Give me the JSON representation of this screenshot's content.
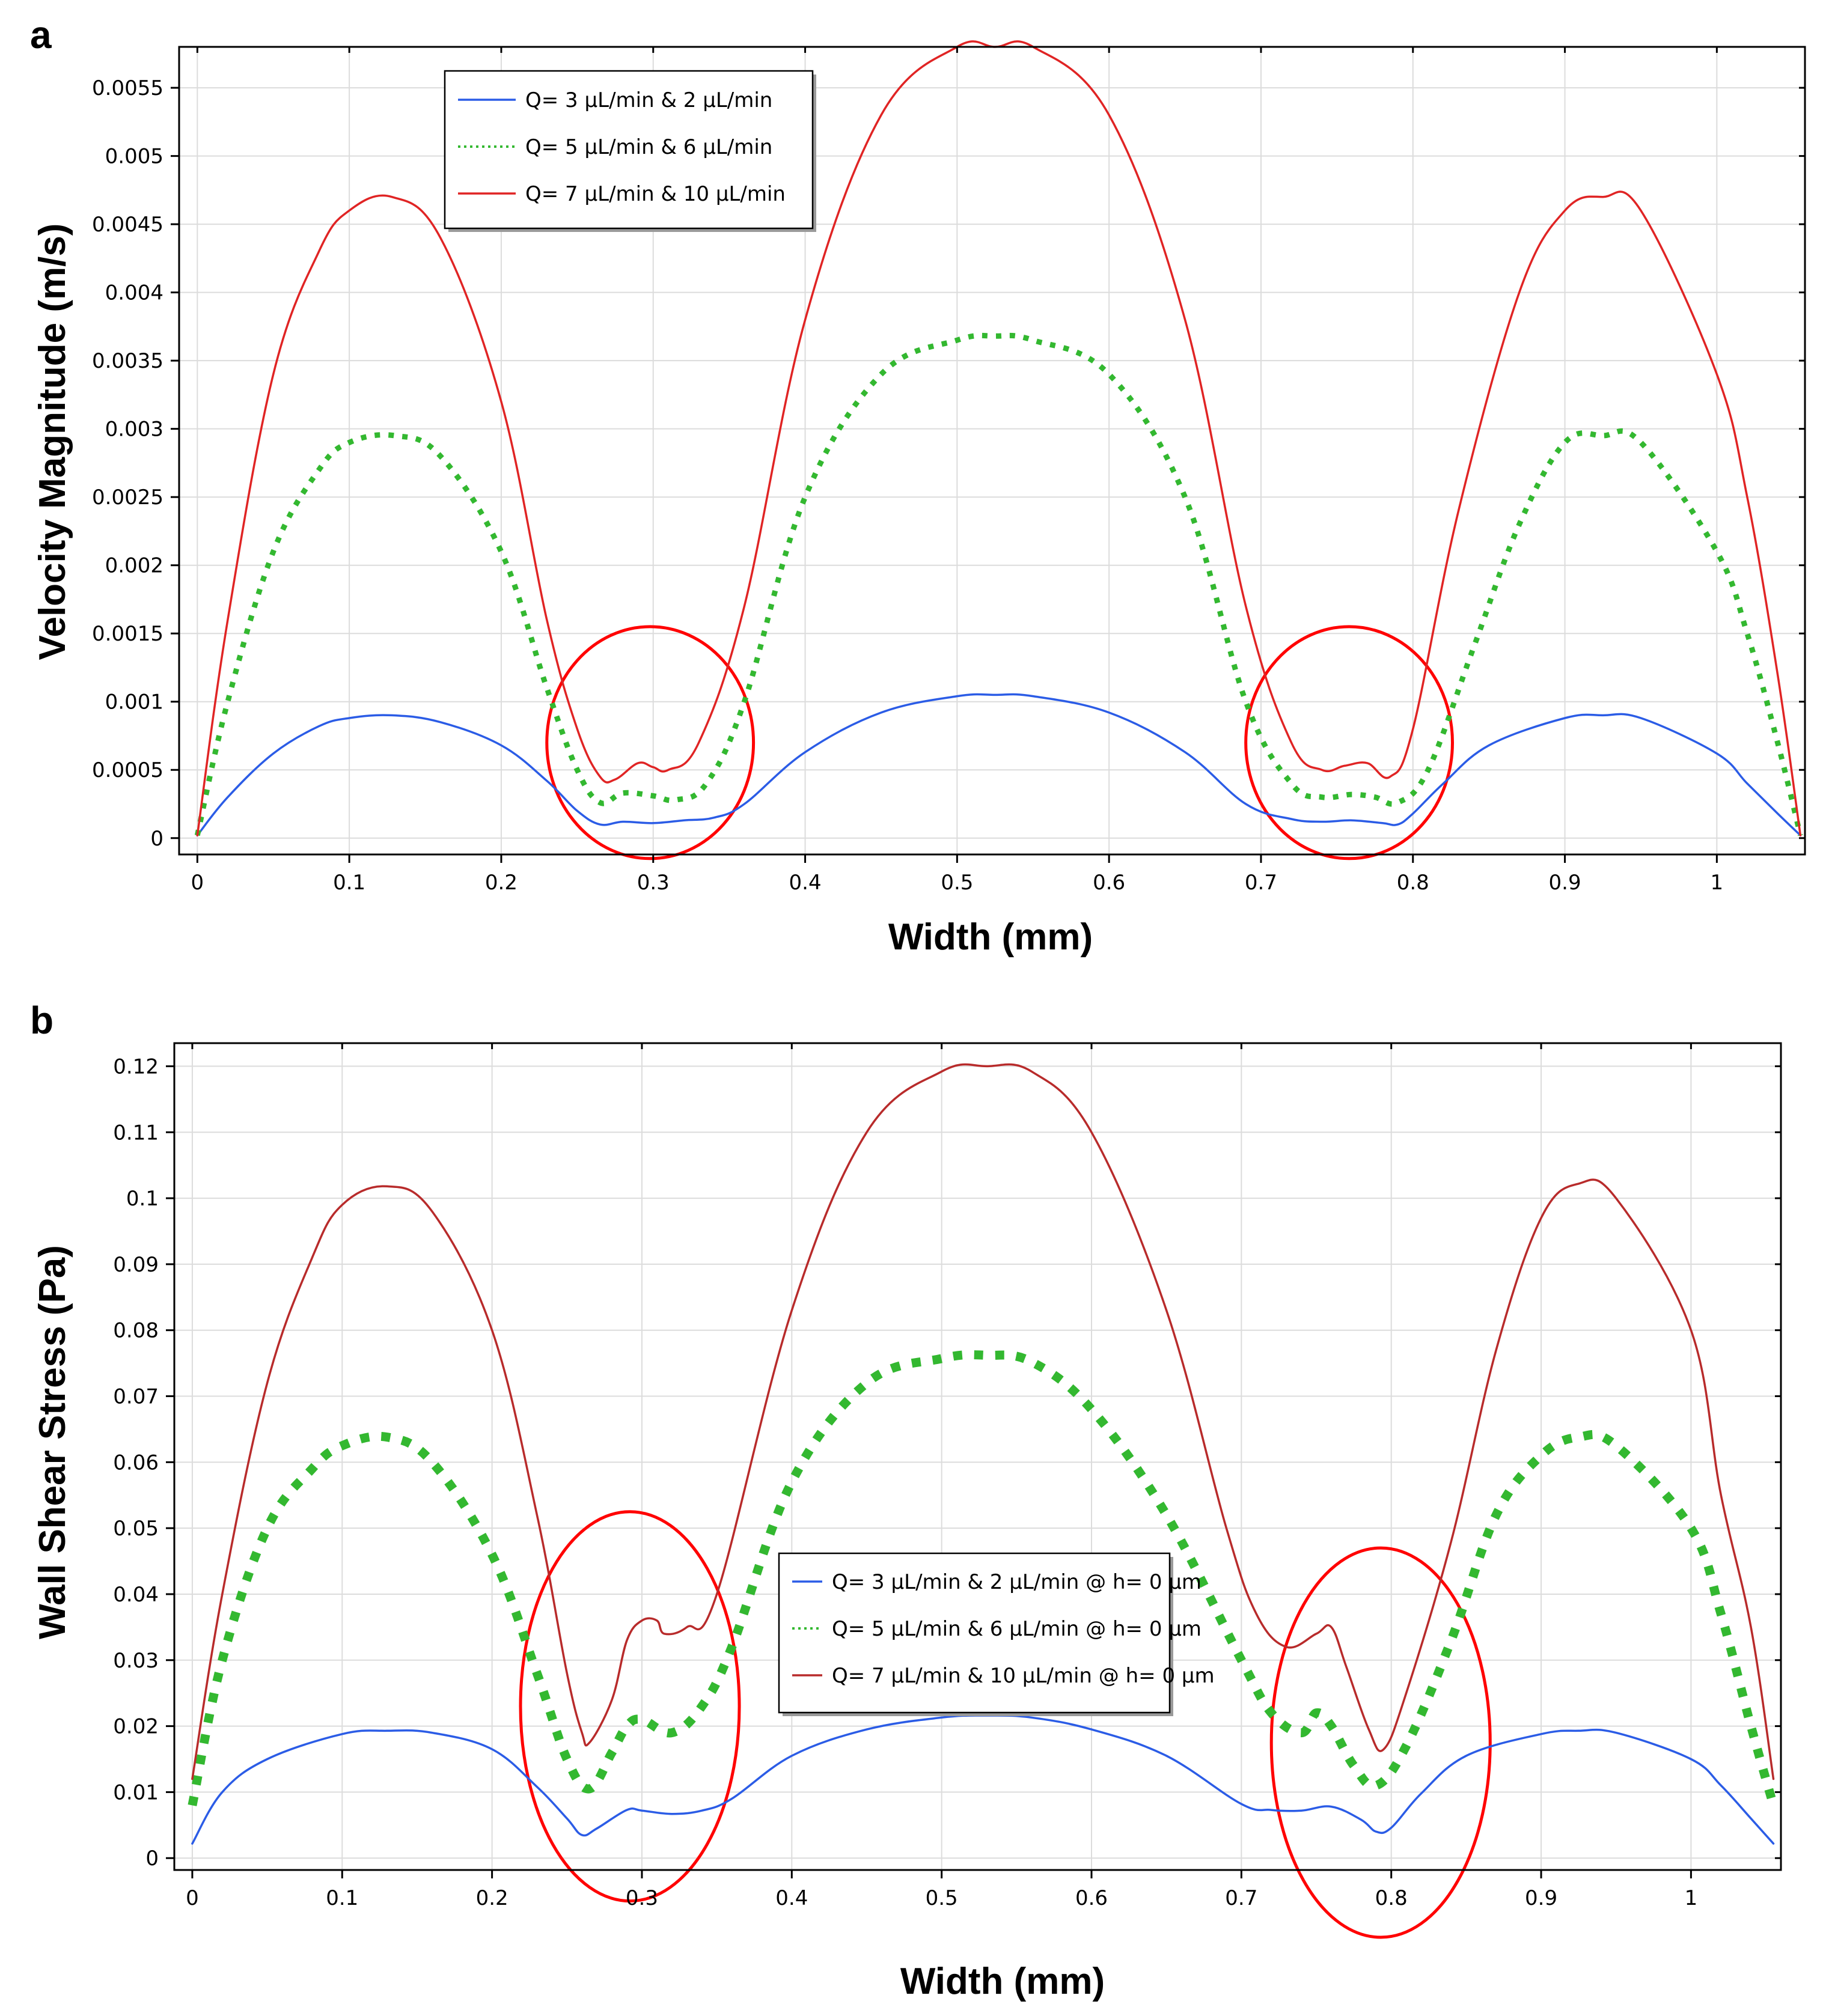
{
  "chart_data": [
    {
      "panel_label": "a",
      "type": "line",
      "title": "",
      "xlabel": "Width (mm)",
      "ylabel": "Velocity Magnitude (m/s)",
      "xlim": [
        -0.012,
        1.058
      ],
      "ylim": [
        -0.00012,
        0.0058
      ],
      "grid": true,
      "legend_position": "top-left",
      "x_ticks": [
        0,
        0.1,
        0.2,
        0.3,
        0.4,
        0.5,
        0.6,
        0.7,
        0.8,
        0.9,
        1
      ],
      "x_tick_labels": [
        "0",
        "0.1",
        "0.2",
        "0.3",
        "0.4",
        "0.5",
        "0.6",
        "0.7",
        "0.8",
        "0.9",
        "1"
      ],
      "y_ticks": [
        0,
        0.0005,
        0.001,
        0.0015,
        0.002,
        0.0025,
        0.003,
        0.0035,
        0.004,
        0.0045,
        0.005,
        0.0055
      ],
      "y_tick_labels": [
        "0",
        "0.0005",
        "0.001",
        "0.0015",
        "0.002",
        "0.0025",
        "0.003",
        "0.0035",
        "0.004",
        "0.0045",
        "0.005",
        "0.0055"
      ],
      "series": [
        {
          "name": "Q= 3 µL/min & 2 µL/min",
          "color": "#2b5ce6",
          "style": "solid",
          "x": [
            0,
            0.02,
            0.05,
            0.08,
            0.1,
            0.128,
            0.16,
            0.2,
            0.23,
            0.25,
            0.265,
            0.28,
            0.3,
            0.32,
            0.34,
            0.36,
            0.4,
            0.45,
            0.5,
            0.525,
            0.55,
            0.6,
            0.65,
            0.69,
            0.72,
            0.74,
            0.76,
            0.78,
            0.79,
            0.8,
            0.82,
            0.85,
            0.9,
            0.925,
            0.95,
            1,
            1.02,
            1.04,
            1.055
          ],
          "y": [
            2e-05,
            0.0003,
            0.00062,
            0.00082,
            0.00088,
            0.0009,
            0.00085,
            0.00068,
            0.00042,
            0.0002,
            0.0001,
            0.00012,
            0.00011,
            0.00013,
            0.00015,
            0.00025,
            0.00063,
            0.00092,
            0.00104,
            0.00105,
            0.00104,
            0.00092,
            0.00063,
            0.00025,
            0.00014,
            0.00012,
            0.00013,
            0.00011,
            0.0001,
            0.00018,
            0.0004,
            0.00068,
            0.00088,
            0.0009,
            0.00088,
            0.00062,
            0.0004,
            0.00018,
            2e-05
          ]
        },
        {
          "name": "Q= 5 µL/min & 6 µL/min",
          "color": "#33b830",
          "style": "dotted",
          "x": [
            0,
            0.02,
            0.05,
            0.08,
            0.1,
            0.13,
            0.16,
            0.2,
            0.23,
            0.25,
            0.265,
            0.28,
            0.3,
            0.315,
            0.335,
            0.36,
            0.4,
            0.45,
            0.5,
            0.525,
            0.55,
            0.6,
            0.65,
            0.69,
            0.72,
            0.74,
            0.76,
            0.775,
            0.79,
            0.81,
            0.84,
            0.87,
            0.9,
            0.925,
            0.95,
            1,
            1.02,
            1.04,
            1.055
          ],
          "y": [
            2e-05,
            0.001,
            0.0021,
            0.0027,
            0.0029,
            0.00295,
            0.0028,
            0.0021,
            0.0011,
            0.0005,
            0.00026,
            0.00033,
            0.00031,
            0.00028,
            0.0004,
            0.001,
            0.0025,
            0.0034,
            0.00365,
            0.00368,
            0.00365,
            0.0034,
            0.0025,
            0.001,
            0.0004,
            0.0003,
            0.00032,
            0.0003,
            0.00026,
            0.0005,
            0.0014,
            0.0023,
            0.0029,
            0.00295,
            0.0029,
            0.0021,
            0.0015,
            0.0007,
            2e-05
          ]
        },
        {
          "name": "Q= 7 µL/min & 10 µL/min",
          "color": "#e02424",
          "style": "solid",
          "x": [
            0,
            0.02,
            0.05,
            0.08,
            0.1,
            0.128,
            0.16,
            0.2,
            0.23,
            0.25,
            0.265,
            0.275,
            0.29,
            0.3,
            0.31,
            0.33,
            0.36,
            0.4,
            0.45,
            0.5,
            0.525,
            0.55,
            0.6,
            0.65,
            0.69,
            0.72,
            0.74,
            0.755,
            0.77,
            0.785,
            0.8,
            0.83,
            0.87,
            0.9,
            0.925,
            0.95,
            1,
            1.02,
            1.04,
            1.055
          ],
          "y": [
            2e-05,
            0.0016,
            0.0034,
            0.0043,
            0.0046,
            0.0047,
            0.0044,
            0.0032,
            0.0016,
            0.0008,
            0.00045,
            0.00043,
            0.00055,
            0.00052,
            0.0005,
            0.0007,
            0.0017,
            0.0038,
            0.0053,
            0.0058,
            0.0058,
            0.0058,
            0.0053,
            0.0038,
            0.0017,
            0.0007,
            0.0005,
            0.00053,
            0.00055,
            0.00045,
            0.0008,
            0.0024,
            0.004,
            0.0046,
            0.0047,
            0.0046,
            0.0034,
            0.0025,
            0.0012,
            2e-05
          ]
        }
      ],
      "annotations": [
        {
          "type": "circle",
          "color": "#ff0000",
          "cx": 0.298,
          "cy": 0.0007,
          "rx": 0.068,
          "ry": 0.00085
        },
        {
          "type": "circle",
          "color": "#ff0000",
          "cx": 0.758,
          "cy": 0.0007,
          "rx": 0.068,
          "ry": 0.00085
        }
      ]
    },
    {
      "panel_label": "b",
      "type": "line",
      "title": "",
      "xlabel": "Width (mm)",
      "ylabel": "Wall Shear Stress (Pa)",
      "xlim": [
        -0.012,
        1.06
      ],
      "ylim": [
        -0.0018,
        0.1235
      ],
      "grid": true,
      "legend_position": "center-right",
      "x_ticks": [
        0,
        0.1,
        0.2,
        0.3,
        0.4,
        0.5,
        0.6,
        0.7,
        0.8,
        0.9,
        1
      ],
      "x_tick_labels": [
        "0",
        "0.1",
        "0.2",
        "0.3",
        "0.4",
        "0.5",
        "0.6",
        "0.7",
        "0.8",
        "0.9",
        "1"
      ],
      "y_ticks": [
        0,
        0.01,
        0.02,
        0.03,
        0.04,
        0.05,
        0.06,
        0.07,
        0.08,
        0.09,
        0.1,
        0.11,
        0.12
      ],
      "y_tick_labels": [
        "0",
        "0.01",
        "0.02",
        "0.03",
        "0.04",
        "0.05",
        "0.06",
        "0.07",
        "0.08",
        "0.09",
        "0.1",
        "0.11",
        "0.12"
      ],
      "series": [
        {
          "name": "Q= 3 µL/min & 2 µL/min @ h= 0 µm",
          "color": "#2b5ce6",
          "style": "solid",
          "x": [
            0,
            0.02,
            0.05,
            0.1,
            0.13,
            0.16,
            0.2,
            0.23,
            0.25,
            0.26,
            0.27,
            0.29,
            0.3,
            0.32,
            0.34,
            0.36,
            0.4,
            0.45,
            0.5,
            0.53,
            0.56,
            0.6,
            0.65,
            0.7,
            0.72,
            0.74,
            0.76,
            0.78,
            0.79,
            0.8,
            0.82,
            0.85,
            0.9,
            0.925,
            0.95,
            1,
            1.02,
            1.04,
            1.055
          ],
          "y": [
            0.0022,
            0.01,
            0.015,
            0.0188,
            0.0193,
            0.019,
            0.0165,
            0.0108,
            0.006,
            0.0035,
            0.0045,
            0.0073,
            0.0072,
            0.0067,
            0.0072,
            0.009,
            0.0155,
            0.0195,
            0.0213,
            0.0216,
            0.0213,
            0.0195,
            0.0155,
            0.0082,
            0.0073,
            0.0072,
            0.0078,
            0.0058,
            0.004,
            0.0046,
            0.0098,
            0.0155,
            0.0188,
            0.0193,
            0.019,
            0.015,
            0.011,
            0.006,
            0.0022
          ]
        },
        {
          "name": "Q= 5 µL/min & 6 µL/min @ h= 0 µm",
          "color": "#33b830",
          "style": "dotted",
          "x": [
            0,
            0.02,
            0.05,
            0.08,
            0.1,
            0.13,
            0.16,
            0.2,
            0.23,
            0.25,
            0.265,
            0.28,
            0.29,
            0.3,
            0.32,
            0.34,
            0.36,
            0.4,
            0.45,
            0.5,
            0.53,
            0.56,
            0.6,
            0.65,
            0.7,
            0.72,
            0.74,
            0.75,
            0.76,
            0.775,
            0.79,
            0.81,
            0.84,
            0.87,
            0.9,
            0.925,
            0.95,
            1,
            1.02,
            1.04,
            1.055
          ],
          "y": [
            0.008,
            0.03,
            0.05,
            0.059,
            0.0625,
            0.0638,
            0.06,
            0.046,
            0.028,
            0.015,
            0.0105,
            0.016,
            0.02,
            0.021,
            0.019,
            0.023,
            0.032,
            0.057,
            0.072,
            0.0757,
            0.0762,
            0.0752,
            0.068,
            0.052,
            0.03,
            0.022,
            0.019,
            0.022,
            0.02,
            0.014,
            0.011,
            0.017,
            0.033,
            0.052,
            0.061,
            0.0638,
            0.0625,
            0.05,
            0.037,
            0.02,
            0.008
          ]
        },
        {
          "name": "Q= 7 µL/min & 10 µL/min @ h= 0 µm",
          "color": "#b82b2b",
          "style": "solid",
          "x": [
            0,
            0.02,
            0.05,
            0.08,
            0.1,
            0.13,
            0.16,
            0.2,
            0.23,
            0.25,
            0.26,
            0.265,
            0.28,
            0.29,
            0.3,
            0.31,
            0.315,
            0.33,
            0.35,
            0.4,
            0.45,
            0.5,
            0.53,
            0.56,
            0.6,
            0.65,
            0.69,
            0.71,
            0.73,
            0.75,
            0.76,
            0.77,
            0.785,
            0.795,
            0.81,
            0.84,
            0.87,
            0.9,
            0.925,
            0.95,
            1,
            1.02,
            1.04,
            1.055
          ],
          "y": [
            0.012,
            0.04,
            0.072,
            0.091,
            0.099,
            0.1018,
            0.098,
            0.08,
            0.052,
            0.028,
            0.019,
            0.0175,
            0.024,
            0.033,
            0.036,
            0.036,
            0.034,
            0.035,
            0.04,
            0.083,
            0.11,
            0.1192,
            0.12,
            0.1192,
            0.11,
            0.083,
            0.05,
            0.037,
            0.032,
            0.034,
            0.035,
            0.029,
            0.0195,
            0.0165,
            0.025,
            0.048,
            0.077,
            0.097,
            0.1022,
            0.1,
            0.08,
            0.055,
            0.035,
            0.012
          ]
        }
      ],
      "annotations": [
        {
          "type": "ellipse",
          "color": "#ff0000",
          "cx": 0.292,
          "cy": 0.023,
          "rx": 0.073,
          "ry": 0.0295
        },
        {
          "type": "ellipse",
          "color": "#ff0000",
          "cx": 0.793,
          "cy": 0.0175,
          "rx": 0.073,
          "ry": 0.0295
        }
      ]
    }
  ]
}
